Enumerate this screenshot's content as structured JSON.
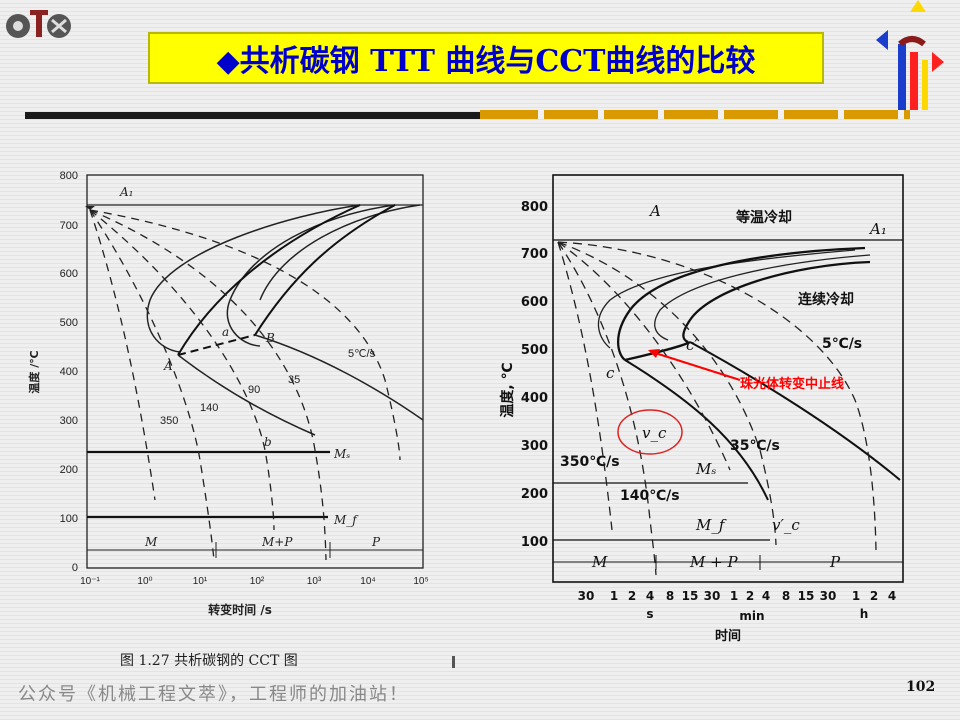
{
  "title": "◆共析碳钢 TTT 曲线与CCT曲线的比较",
  "left_chart": {
    "y_ticks": [
      "800",
      "700",
      "600",
      "500",
      "400",
      "300",
      "200",
      "100",
      "0"
    ],
    "ylabel": "温度 /℃",
    "x_ticks": [
      "10⁻¹",
      "10⁰",
      "10¹",
      "10²",
      "10³",
      "10⁴",
      "10⁵"
    ],
    "xlabel": "转变时间 /s",
    "labels": {
      "A1": "A₁",
      "A": "A",
      "B": "B",
      "a": "a",
      "b": "b",
      "rate5": "5℃/s",
      "rate35": "35",
      "rate90": "90",
      "rate140": "140",
      "rate350": "350",
      "Ms": "Mₛ",
      "Mf": "M_f",
      "M": "M",
      "MP": "M+P",
      "P": "P"
    },
    "caption": "图 1.27   共析碳钢的 CCT 图"
  },
  "right_chart": {
    "y_ticks": [
      "800",
      "700",
      "600",
      "500",
      "400",
      "300",
      "200",
      "100"
    ],
    "ylabel": "温度, ℃",
    "x_ticks": [
      "30",
      "1",
      "2",
      "4",
      "8",
      "15",
      "30",
      "1",
      "2",
      "4",
      "8",
      "15",
      "30",
      "1",
      "2",
      "4"
    ],
    "x_units": [
      "s",
      "min",
      "h"
    ],
    "xlabel": "时间",
    "labels": {
      "A": "A",
      "A1": "A₁",
      "isothermal": "等温冷却",
      "continuous": "连续冷却",
      "rate5": "5℃/s",
      "rate35": "35℃/s",
      "rate140": "140℃/s",
      "rate350": "350℃/s",
      "c": "c",
      "cprime": "c′",
      "vc": "v_c",
      "vcprime": "v′_c",
      "Ms": "Mₛ",
      "Mf": "M_f",
      "M": "M",
      "MP": "M + P",
      "P": "P",
      "annotation": "珠光体转变中止线"
    }
  },
  "footer": "公众号《机械工程文萃》，工程师的加油站！",
  "page_number": "102",
  "colors": {
    "title_bg": "#ffff00",
    "title_text": "#0000cc",
    "annotation": "#ff0000"
  }
}
